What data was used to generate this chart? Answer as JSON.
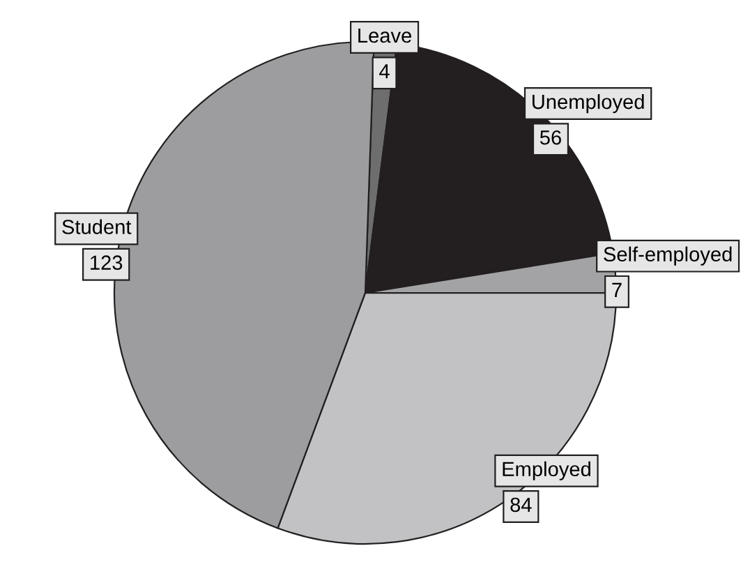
{
  "chart_data": {
    "type": "pie",
    "categories": [
      "Leave",
      "Unemployed",
      "Self-employed",
      "Employed",
      "Student"
    ],
    "values": [
      4,
      56,
      7,
      84,
      123
    ],
    "colors": [
      "#6e6e6e",
      "#231f20",
      "#a3a3a5",
      "#c2c2c4",
      "#9d9d9f"
    ],
    "data_labels": true,
    "legend": false
  }
}
